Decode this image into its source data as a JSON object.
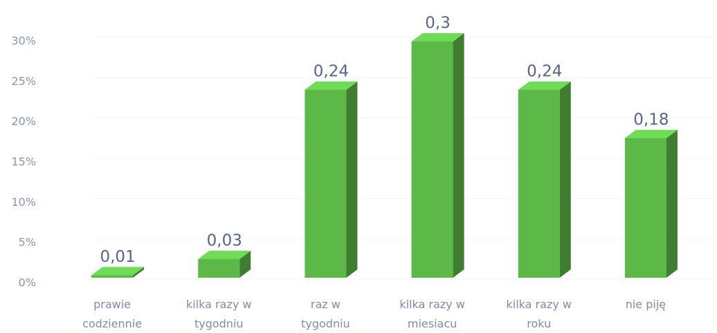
{
  "chart_data": {
    "type": "bar3d",
    "categories": [
      "prawie codziennie",
      "kilka razy w tygodniu",
      "raz w tygodniu",
      "kilka razy w miesiacu",
      "kilka razy w roku",
      "nie piję"
    ],
    "values": [
      1,
      3,
      24,
      30,
      24,
      18
    ],
    "value_labels": [
      "0,01",
      "0,03",
      "0,24",
      "0,3",
      "0,24",
      "0,18"
    ],
    "color": "#5cb847",
    "ylim": [
      0,
      30
    ],
    "yticks": [
      {
        "value": 0,
        "label": "0%"
      },
      {
        "value": 5,
        "label": "5%"
      },
      {
        "value": 10,
        "label": "10%"
      },
      {
        "value": 15,
        "label": "15%"
      },
      {
        "value": 20,
        "label": "20%"
      },
      {
        "value": 25,
        "label": "25%"
      },
      {
        "value": 30,
        "label": "30%"
      }
    ],
    "grid": true
  }
}
